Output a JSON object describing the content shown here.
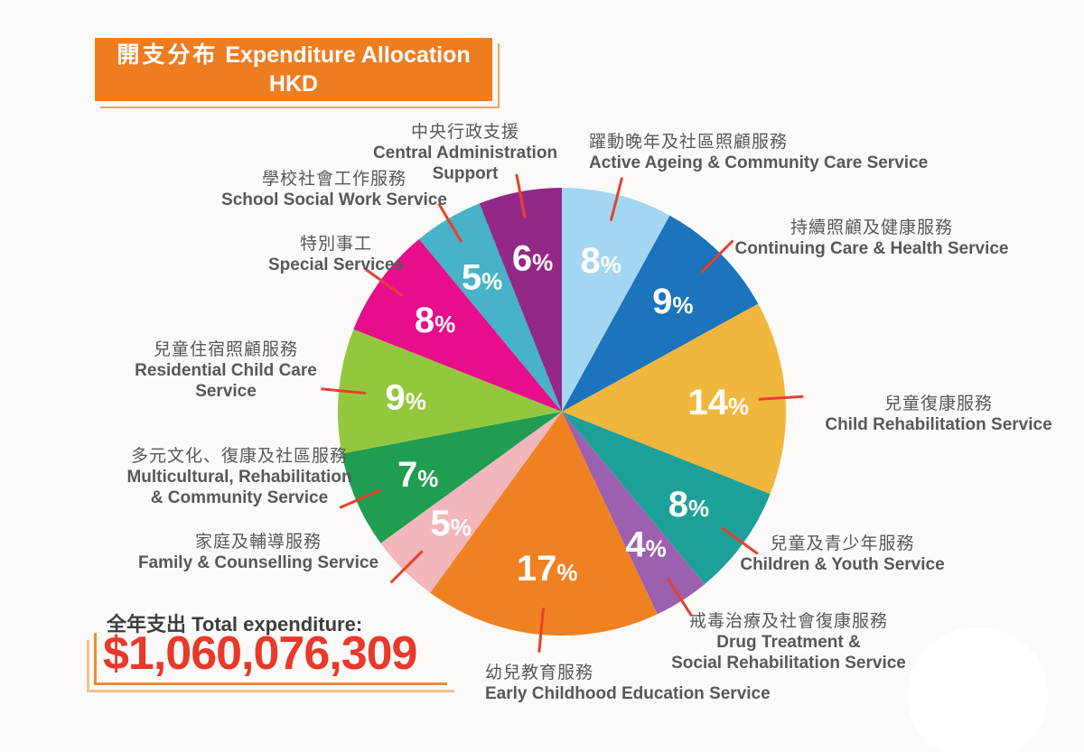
{
  "title": {
    "zh": "開支分布",
    "en": "Expenditure Allocation",
    "currency": "HKD"
  },
  "total": {
    "label": "全年支出 Total expenditure:",
    "amount": "$1,060,076,309"
  },
  "colors": {
    "title_bg": "#ee7d21",
    "leader_line": "#e8402d",
    "total_amount": "#e8392b",
    "label_text": "#57585a",
    "percent_text": "#ffffff"
  },
  "chart_data": {
    "type": "pie",
    "title": "開支分布 Expenditure Allocation HKD",
    "unit": "%",
    "start_angle_deg": 0,
    "direction": "clockwise",
    "total_label": "全年支出 Total expenditure:",
    "total_value": "$1,060,076,309",
    "series": [
      {
        "name_zh": "躍動晚年及社區照顧服務",
        "name_en": "Active Ageing & Community Care Service",
        "value": 8,
        "color": "#a3d6f1"
      },
      {
        "name_zh": "持續照顧及健康服務",
        "name_en": "Continuing Care & Health Service",
        "value": 9,
        "color": "#1b74bc"
      },
      {
        "name_zh": "兒童復康服務",
        "name_en": "Child Rehabilitation Service",
        "value": 14,
        "color": "#f1b63d"
      },
      {
        "name_zh": "兒童及青少年服務",
        "name_en": "Children & Youth Service",
        "value": 8,
        "color": "#1da09a"
      },
      {
        "name_zh": "戒毒治療及社會復康服務",
        "name_en": "Drug Treatment &\nSocial Rehabilitation Service",
        "value": 4,
        "color": "#9b60ae"
      },
      {
        "name_zh": "幼兒教育服務",
        "name_en": "Early Childhood Education Service",
        "value": 17,
        "color": "#f08122"
      },
      {
        "name_zh": "家庭及輔導服務",
        "name_en": "Family & Counselling Service",
        "value": 5,
        "color": "#f3b6bc"
      },
      {
        "name_zh": "多元文化、復康及社區服務",
        "name_en": "Multicultural, Rehabilitation\n& Community Service",
        "value": 7,
        "color": "#1f9e52"
      },
      {
        "name_zh": "兒童住宿照顧服務",
        "name_en": "Residential Child Care\nService",
        "value": 9,
        "color": "#93c83e"
      },
      {
        "name_zh": "特別事工",
        "name_en": "Special Services",
        "value": 8,
        "color": "#e70d8b"
      },
      {
        "name_zh": "學校社會工作服務",
        "name_en": "School Social Work Service",
        "value": 5,
        "color": "#47b2c8"
      },
      {
        "name_zh": "中央行政支援",
        "name_en": "Central Administration Support",
        "value": 6,
        "color": "#932888"
      }
    ]
  }
}
